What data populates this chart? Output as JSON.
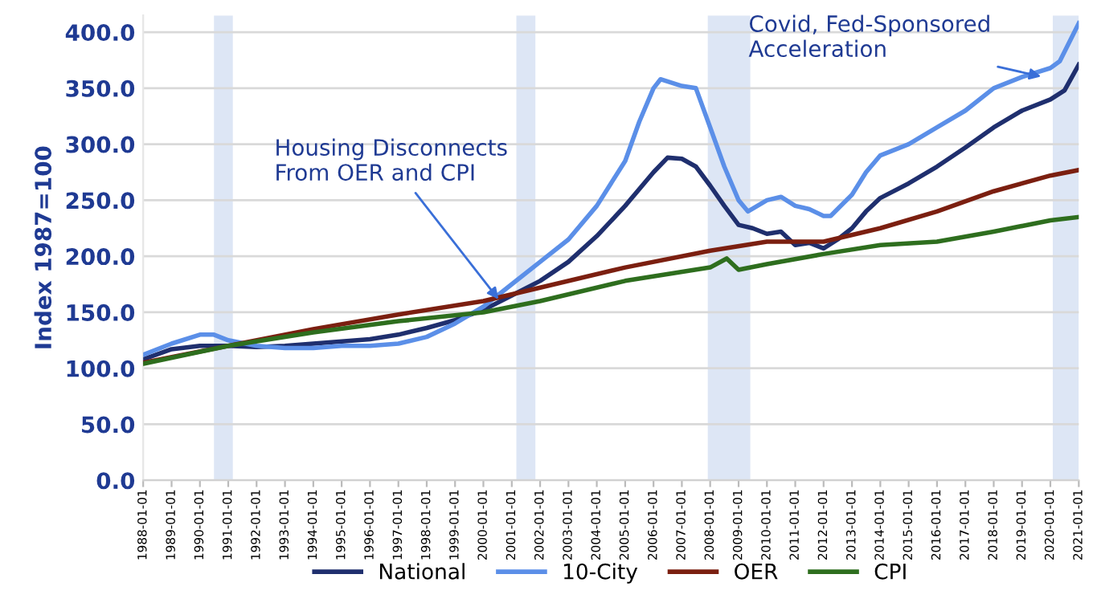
{
  "chart_data": {
    "type": "line",
    "ylabel": "Index 1987=100",
    "xlim": [
      "1988-01-01",
      "2021-01-01"
    ],
    "xticks": [
      "1988-01-01",
      "1989-01-01",
      "1990-01-01",
      "1991-01-01",
      "1992-01-01",
      "1993-01-01",
      "1994-01-01",
      "1995-01-01",
      "1996-01-01",
      "1997-01-01",
      "1998-01-01",
      "1999-01-01",
      "2000-01-01",
      "2001-01-01",
      "2002-01-01",
      "2003-01-01",
      "2004-01-01",
      "2005-01-01",
      "2006-01-01",
      "2007-01-01",
      "2008-01-01",
      "2009-01-01",
      "2010-01-01",
      "2011-01-01",
      "2012-01-01",
      "2013-01-01",
      "2014-01-01",
      "2015-01-01",
      "2016-01-01",
      "2017-01-01",
      "2018-01-01",
      "2019-01-01",
      "2020-01-01",
      "2021-01-01"
    ],
    "ylim": [
      0,
      415
    ],
    "yticks": [
      {
        "value": 0,
        "label": "0.0"
      },
      {
        "value": 50,
        "label": "50.0"
      },
      {
        "value": 100,
        "label": "100.0"
      },
      {
        "value": 150,
        "label": "150.0"
      },
      {
        "value": 200,
        "label": "200.0"
      },
      {
        "value": 250,
        "label": "250.0"
      },
      {
        "value": 300,
        "label": "300.0"
      },
      {
        "value": 350,
        "label": "350.0"
      },
      {
        "value": 400,
        "label": "400.0"
      }
    ],
    "grid": "y",
    "legend": "bottom",
    "marker": "none",
    "line_style": "solid",
    "series": [
      {
        "name": "National",
        "color": "#1f2f6e",
        "x": [
          "1988-01",
          "1989-01",
          "1990-01",
          "1991-01",
          "1992-01",
          "1993-01",
          "1994-01",
          "1995-01",
          "1996-01",
          "1997-01",
          "1998-01",
          "1999-01",
          "2000-01",
          "2001-01",
          "2002-01",
          "2003-01",
          "2004-01",
          "2005-01",
          "2006-01",
          "2006-07",
          "2007-01",
          "2007-07",
          "2008-01",
          "2008-07",
          "2009-01",
          "2009-07",
          "2010-01",
          "2010-07",
          "2011-01",
          "2011-07",
          "2012-01",
          "2012-07",
          "2013-01",
          "2013-07",
          "2014-01",
          "2015-01",
          "2016-01",
          "2017-01",
          "2018-01",
          "2019-01",
          "2020-01",
          "2020-07",
          "2021-01"
        ],
        "values": [
          108,
          117,
          120,
          120,
          119,
          120,
          122,
          124,
          126,
          130,
          136,
          143,
          152,
          165,
          178,
          195,
          218,
          245,
          275,
          288,
          287,
          280,
          263,
          245,
          228,
          225,
          220,
          222,
          210,
          212,
          207,
          215,
          225,
          240,
          252,
          265,
          280,
          297,
          315,
          330,
          340,
          348,
          371
        ]
      },
      {
        "name": "10-City",
        "color": "#5b8fe8",
        "x": [
          "1988-01",
          "1989-01",
          "1990-01",
          "1990-07",
          "1991-01",
          "1992-01",
          "1993-01",
          "1994-01",
          "1995-01",
          "1996-01",
          "1997-01",
          "1998-01",
          "1999-01",
          "2000-01",
          "2001-01",
          "2002-01",
          "2003-01",
          "2004-01",
          "2005-01",
          "2005-07",
          "2006-01",
          "2006-04",
          "2007-01",
          "2007-07",
          "2008-01",
          "2008-07",
          "2009-01",
          "2009-05",
          "2010-01",
          "2010-07",
          "2011-01",
          "2011-07",
          "2012-01",
          "2012-04",
          "2013-01",
          "2013-07",
          "2014-01",
          "2015-01",
          "2016-01",
          "2017-01",
          "2018-01",
          "2019-01",
          "2020-01",
          "2020-05",
          "2021-01"
        ],
        "values": [
          112,
          122,
          130,
          130,
          125,
          120,
          118,
          118,
          120,
          120,
          122,
          128,
          140,
          155,
          175,
          195,
          215,
          245,
          285,
          320,
          350,
          358,
          352,
          350,
          315,
          280,
          250,
          240,
          250,
          253,
          245,
          242,
          236,
          236,
          255,
          275,
          290,
          300,
          315,
          330,
          350,
          360,
          368,
          374,
          408
        ]
      },
      {
        "name": "OER",
        "color": "#7b1f10",
        "x": [
          "1988-01",
          "1991-01",
          "1994-01",
          "1997-01",
          "2000-01",
          "2002-01",
          "2005-01",
          "2008-01",
          "2010-01",
          "2012-01",
          "2014-01",
          "2016-01",
          "2018-01",
          "2020-01",
          "2021-01"
        ],
        "values": [
          105,
          120,
          135,
          148,
          160,
          172,
          190,
          205,
          213,
          213,
          225,
          240,
          258,
          272,
          277
        ]
      },
      {
        "name": "CPI",
        "color": "#2e6e1e",
        "x": [
          "1988-01",
          "1991-01",
          "1994-01",
          "1997-01",
          "2000-01",
          "2002-01",
          "2005-01",
          "2008-01",
          "2008-08",
          "2009-01",
          "2010-01",
          "2012-01",
          "2014-01",
          "2016-01",
          "2018-01",
          "2020-01",
          "2021-01"
        ],
        "values": [
          104,
          120,
          132,
          142,
          150,
          160,
          178,
          190,
          198,
          188,
          193,
          202,
          210,
          213,
          222,
          232,
          235
        ]
      }
    ],
    "bands": [
      {
        "axis": "x",
        "from": "1990-07",
        "to": "1991-03",
        "color": "#dde6f5"
      },
      {
        "axis": "x",
        "from": "2001-03",
        "to": "2001-11",
        "color": "#dde6f5"
      },
      {
        "axis": "x",
        "from": "2007-12",
        "to": "2009-06",
        "color": "#dde6f5"
      },
      {
        "axis": "x",
        "from": "2020-02",
        "to": "2021-01",
        "color": "#dde6f5"
      }
    ],
    "annotations": [
      {
        "text": "Housing Disconnects\nFrom OER and CPI",
        "x": "2000-08",
        "y": 160
      },
      {
        "text": "Covid, Fed-Sponsored\nAcceleration",
        "x": "2019-10",
        "y": 360
      }
    ]
  }
}
